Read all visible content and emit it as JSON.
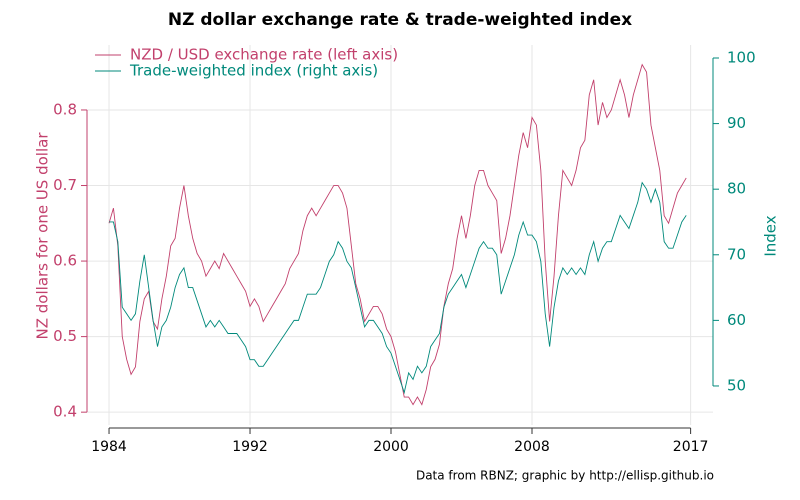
{
  "chart_data": {
    "type": "line",
    "title": "NZ dollar exchange rate & trade-weighted index",
    "y_label": "NZ dollars for one US dollar",
    "y2_label": "Index",
    "source": "Data from RBNZ; graphic by http://ellisp.github.io",
    "x": [
      1984,
      1984.25,
      1984.5,
      1984.75,
      1985,
      1985.25,
      1985.5,
      1985.75,
      1986,
      1986.25,
      1986.5,
      1986.75,
      1987,
      1987.25,
      1987.5,
      1987.75,
      1988,
      1988.25,
      1988.5,
      1988.75,
      1989,
      1989.25,
      1989.5,
      1989.75,
      1990,
      1990.25,
      1990.5,
      1990.75,
      1991,
      1991.25,
      1991.5,
      1991.75,
      1992,
      1992.25,
      1992.5,
      1992.75,
      1993,
      1993.25,
      1993.5,
      1993.75,
      1994,
      1994.25,
      1994.5,
      1994.75,
      1995,
      1995.25,
      1995.5,
      1995.75,
      1996,
      1996.25,
      1996.5,
      1996.75,
      1997,
      1997.25,
      1997.5,
      1997.75,
      1998,
      1998.25,
      1998.5,
      1998.75,
      1999,
      1999.25,
      1999.5,
      1999.75,
      2000,
      2000.25,
      2000.5,
      2000.75,
      2001,
      2001.25,
      2001.5,
      2001.75,
      2002,
      2002.25,
      2002.5,
      2002.75,
      2003,
      2003.25,
      2003.5,
      2003.75,
      2004,
      2004.25,
      2004.5,
      2004.75,
      2005,
      2005.25,
      2005.5,
      2005.75,
      2006,
      2006.25,
      2006.5,
      2006.75,
      2007,
      2007.25,
      2007.5,
      2007.75,
      2008,
      2008.25,
      2008.5,
      2008.75,
      2009,
      2009.25,
      2009.5,
      2009.75,
      2010,
      2010.25,
      2010.5,
      2010.75,
      2011,
      2011.25,
      2011.5,
      2011.75,
      2012,
      2012.25,
      2012.5,
      2012.75,
      2013,
      2013.25,
      2013.5,
      2013.75,
      2014,
      2014.25,
      2014.5,
      2014.75,
      2015,
      2015.25,
      2015.5,
      2015.75,
      2016,
      2016.25,
      2016.5,
      2016.75
    ],
    "series": [
      {
        "name": "NZD / USD exchange rate (left axis)",
        "color": "#c2406c",
        "values": [
          0.65,
          0.67,
          0.62,
          0.5,
          0.47,
          0.45,
          0.46,
          0.52,
          0.55,
          0.56,
          0.52,
          0.51,
          0.55,
          0.58,
          0.62,
          0.63,
          0.67,
          0.7,
          0.66,
          0.63,
          0.61,
          0.6,
          0.58,
          0.59,
          0.6,
          0.59,
          0.61,
          0.6,
          0.59,
          0.58,
          0.57,
          0.56,
          0.54,
          0.55,
          0.54,
          0.52,
          0.53,
          0.54,
          0.55,
          0.56,
          0.57,
          0.59,
          0.6,
          0.61,
          0.64,
          0.66,
          0.67,
          0.66,
          0.67,
          0.68,
          0.69,
          0.7,
          0.7,
          0.69,
          0.67,
          0.62,
          0.57,
          0.55,
          0.52,
          0.53,
          0.54,
          0.54,
          0.53,
          0.51,
          0.5,
          0.48,
          0.45,
          0.42,
          0.42,
          0.41,
          0.42,
          0.41,
          0.43,
          0.46,
          0.47,
          0.49,
          0.54,
          0.57,
          0.59,
          0.63,
          0.66,
          0.63,
          0.66,
          0.7,
          0.72,
          0.72,
          0.7,
          0.69,
          0.68,
          0.61,
          0.63,
          0.66,
          0.7,
          0.74,
          0.77,
          0.75,
          0.79,
          0.78,
          0.72,
          0.6,
          0.52,
          0.58,
          0.66,
          0.72,
          0.71,
          0.7,
          0.72,
          0.75,
          0.76,
          0.82,
          0.84,
          0.78,
          0.81,
          0.79,
          0.8,
          0.82,
          0.84,
          0.82,
          0.79,
          0.82,
          0.84,
          0.86,
          0.85,
          0.78,
          0.75,
          0.72,
          0.66,
          0.65,
          0.67,
          0.69,
          0.7,
          0.71
        ]
      },
      {
        "name": "Trade-weighted index (right axis)",
        "color": "#00897b",
        "axis": "y2",
        "values": [
          75,
          75,
          72,
          62,
          61,
          60,
          61,
          66,
          70,
          65,
          60,
          56,
          59,
          60,
          62,
          65,
          67,
          68,
          65,
          65,
          63,
          61,
          59,
          60,
          59,
          60,
          59,
          58,
          58,
          58,
          57,
          56,
          54,
          54,
          53,
          53,
          54,
          55,
          56,
          57,
          58,
          59,
          60,
          60,
          62,
          64,
          64,
          64,
          65,
          67,
          69,
          70,
          72,
          71,
          69,
          68,
          65,
          62,
          59,
          60,
          60,
          59,
          58,
          56,
          55,
          53,
          51,
          49,
          52,
          51,
          53,
          52,
          53,
          56,
          57,
          58,
          62,
          64,
          65,
          66,
          67,
          65,
          67,
          69,
          71,
          72,
          71,
          71,
          70,
          64,
          66,
          68,
          70,
          73,
          75,
          73,
          73,
          72,
          69,
          61,
          56,
          62,
          66,
          68,
          67,
          68,
          67,
          68,
          67,
          70,
          72,
          69,
          71,
          72,
          72,
          74,
          76,
          75,
          74,
          76,
          78,
          81,
          80,
          78,
          80,
          78,
          72,
          71,
          71,
          73,
          75,
          76
        ]
      }
    ],
    "xlim": [
      1982.75,
      2018.27
    ],
    "xticks": [
      1984,
      1992,
      2000,
      2008,
      2017
    ],
    "ylim": [
      0.383,
      0.886
    ],
    "yticks": [
      0.4,
      0.5,
      0.6,
      0.7,
      0.8
    ],
    "y2lim": [
      44.05,
      101.98
    ],
    "y2ticks": [
      50,
      60,
      70,
      80,
      90,
      100
    ],
    "grid": true,
    "legend": "top-left"
  }
}
